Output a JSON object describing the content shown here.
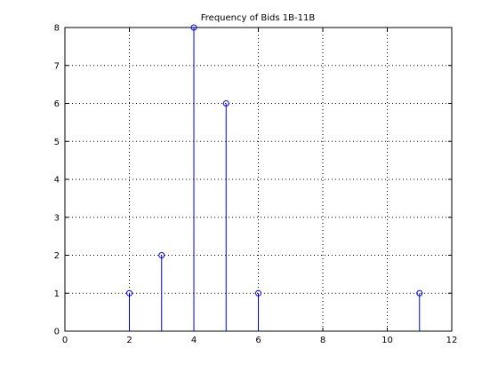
{
  "chart_data": {
    "type": "stem",
    "title": "Frequency of Bids 1B-11B",
    "xlabel": "",
    "ylabel": "",
    "xlim": [
      0,
      12
    ],
    "ylim": [
      0,
      8
    ],
    "xticks": [
      0,
      2,
      4,
      6,
      8,
      10,
      12
    ],
    "yticks": [
      0,
      1,
      2,
      3,
      4,
      5,
      6,
      7,
      8
    ],
    "grid": true,
    "series": [
      {
        "x": [
          2,
          3,
          4,
          5,
          6,
          11
        ],
        "values": [
          1,
          2,
          8,
          6,
          1,
          1
        ]
      }
    ],
    "colors": {
      "stem": "#0000ff",
      "axis": "#000000",
      "grid": "#000000"
    }
  }
}
